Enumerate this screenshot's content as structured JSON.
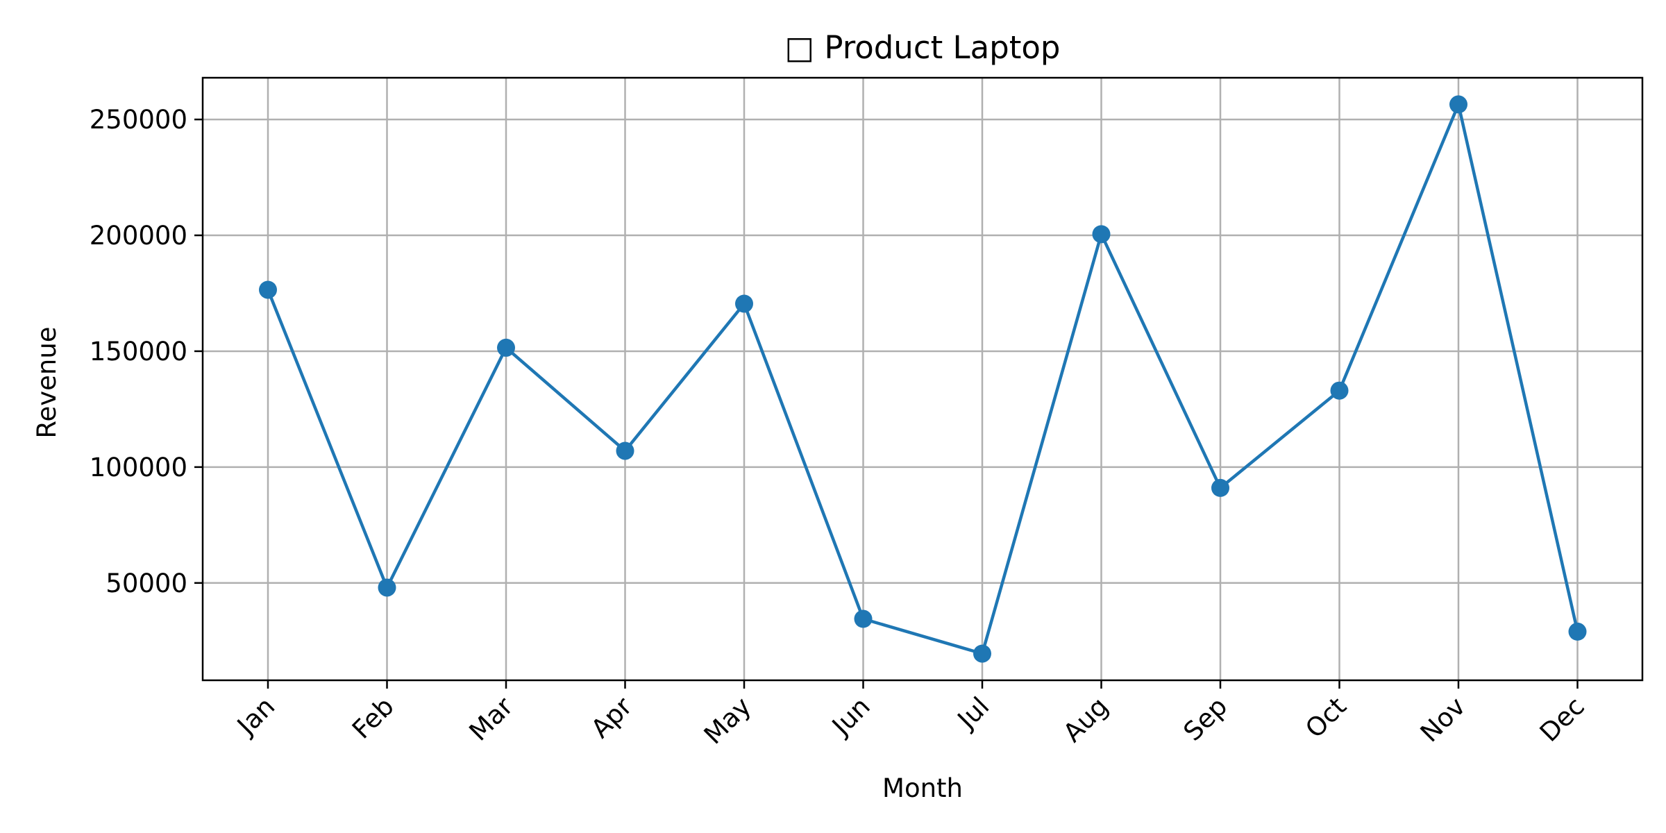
{
  "chart_data": {
    "type": "line",
    "title": "□ Product Laptop",
    "xlabel": "Month",
    "ylabel": "Revenue",
    "categories": [
      "Jan",
      "Feb",
      "Mar",
      "Apr",
      "May",
      "Jun",
      "Jul",
      "Aug",
      "Sep",
      "Oct",
      "Nov",
      "Dec"
    ],
    "series": [
      {
        "values": [
          176500,
          48000,
          151500,
          107000,
          170500,
          34500,
          19500,
          200500,
          91000,
          133000,
          256500,
          29000
        ],
        "color": "#1f77b4",
        "marker": "circle"
      }
    ],
    "yticks": [
      50000,
      100000,
      150000,
      200000,
      250000
    ],
    "ytick_labels": [
      "50000",
      "100000",
      "150000",
      "200000",
      "250000"
    ],
    "ylim": [
      8000,
      268000
    ],
    "grid": true,
    "legend": "none"
  }
}
